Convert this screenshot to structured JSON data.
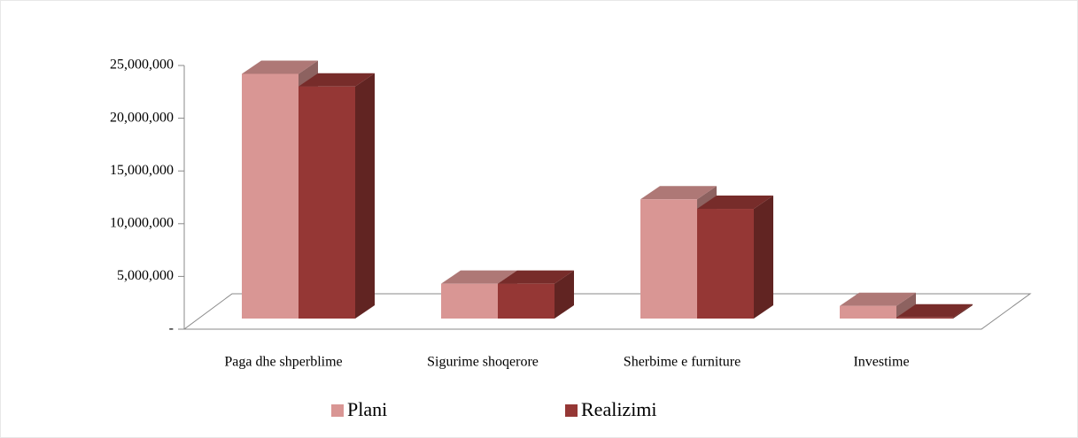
{
  "chart_data": {
    "type": "bar3d",
    "categories": [
      "Paga dhe shperblime",
      "Sigurime shoqerore",
      "Sherbime e furniture",
      "Investime"
    ],
    "series": [
      {
        "name": "Plani",
        "color": "#d99694",
        "values": [
          23200000,
          3300000,
          11300000,
          1200000
        ]
      },
      {
        "name": "Realizimi",
        "color": "#953735",
        "values": [
          22000000,
          3300000,
          10400000,
          100000
        ]
      }
    ],
    "ylim": [
      0,
      25000000
    ],
    "yticks": [
      {
        "value": 0,
        "label": "-"
      },
      {
        "value": 5000000,
        "label": "5,000,000"
      },
      {
        "value": 10000000,
        "label": "10,000,000"
      },
      {
        "value": 15000000,
        "label": "15,000,000"
      },
      {
        "value": 20000000,
        "label": "20,000,000"
      },
      {
        "value": 25000000,
        "label": "25,000,000"
      }
    ],
    "legend": "bottom"
  }
}
